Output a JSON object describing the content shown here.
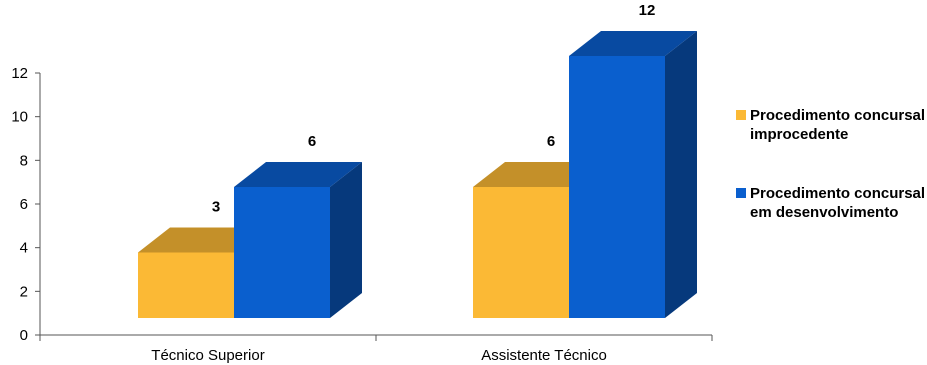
{
  "chart_data": {
    "type": "bar",
    "categories": [
      "Técnico Superior",
      "Assistente Técnico"
    ],
    "series": [
      {
        "name": "Procedimento concursal improcedente",
        "values": [
          3,
          6
        ],
        "color": "#FBB935"
      },
      {
        "name": "Procedimento concursal em desenvolvimento",
        "values": [
          6,
          12
        ],
        "color": "#0A5FCE"
      }
    ],
    "data_labels": [
      "3",
      "6",
      "6",
      "12"
    ],
    "yticks": [
      "0",
      "2",
      "4",
      "6",
      "8",
      "10",
      "12"
    ],
    "ylim": [
      0,
      12
    ],
    "style": "3d-columns",
    "grid": false,
    "legend_position": "right"
  },
  "legend": {
    "items": [
      {
        "line1": "Procedimento concursal",
        "line2": "improcedente",
        "color": "#FBB935"
      },
      {
        "line1": "Procedimento concursal",
        "line2": "em desenvolvimento",
        "color": "#0A5FCE"
      }
    ]
  }
}
